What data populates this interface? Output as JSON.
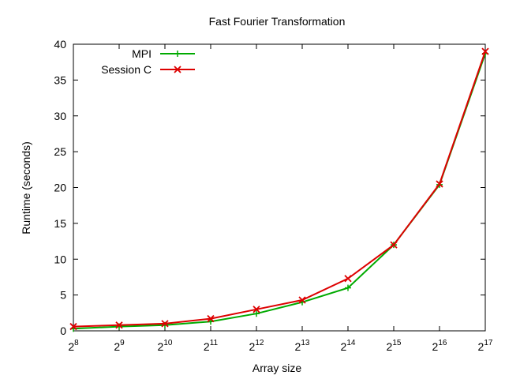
{
  "chart_data": {
    "type": "line",
    "title": "Fast Fourier Transformation",
    "xlabel": "Array size",
    "ylabel": "Runtime (seconds)",
    "x_scale": "log2",
    "x": [
      "2^8",
      "2^9",
      "2^10",
      "2^11",
      "2^12",
      "2^13",
      "2^14",
      "2^15",
      "2^16",
      "2^17"
    ],
    "x_tick_labels": [
      {
        "base": "2",
        "exp": "8"
      },
      {
        "base": "2",
        "exp": "9"
      },
      {
        "base": "2",
        "exp": "10"
      },
      {
        "base": "2",
        "exp": "11"
      },
      {
        "base": "2",
        "exp": "12"
      },
      {
        "base": "2",
        "exp": "13"
      },
      {
        "base": "2",
        "exp": "14"
      },
      {
        "base": "2",
        "exp": "15"
      },
      {
        "base": "2",
        "exp": "16"
      },
      {
        "base": "2",
        "exp": "17"
      }
    ],
    "ylim": [
      0,
      40
    ],
    "y_ticks": [
      0,
      5,
      10,
      15,
      20,
      25,
      30,
      35,
      40
    ],
    "grid": false,
    "legend_position": "top-left",
    "series": [
      {
        "name": "MPI",
        "color": "#00aa00",
        "marker": "plus",
        "values": [
          0.3,
          0.6,
          0.8,
          1.3,
          2.4,
          4.0,
          6.0,
          12.0,
          20.4,
          38.7
        ]
      },
      {
        "name": "Session C",
        "color": "#dd0000",
        "marker": "cross",
        "values": [
          0.6,
          0.8,
          1.0,
          1.7,
          3.0,
          4.3,
          7.3,
          12.0,
          20.5,
          39.0
        ]
      }
    ]
  }
}
